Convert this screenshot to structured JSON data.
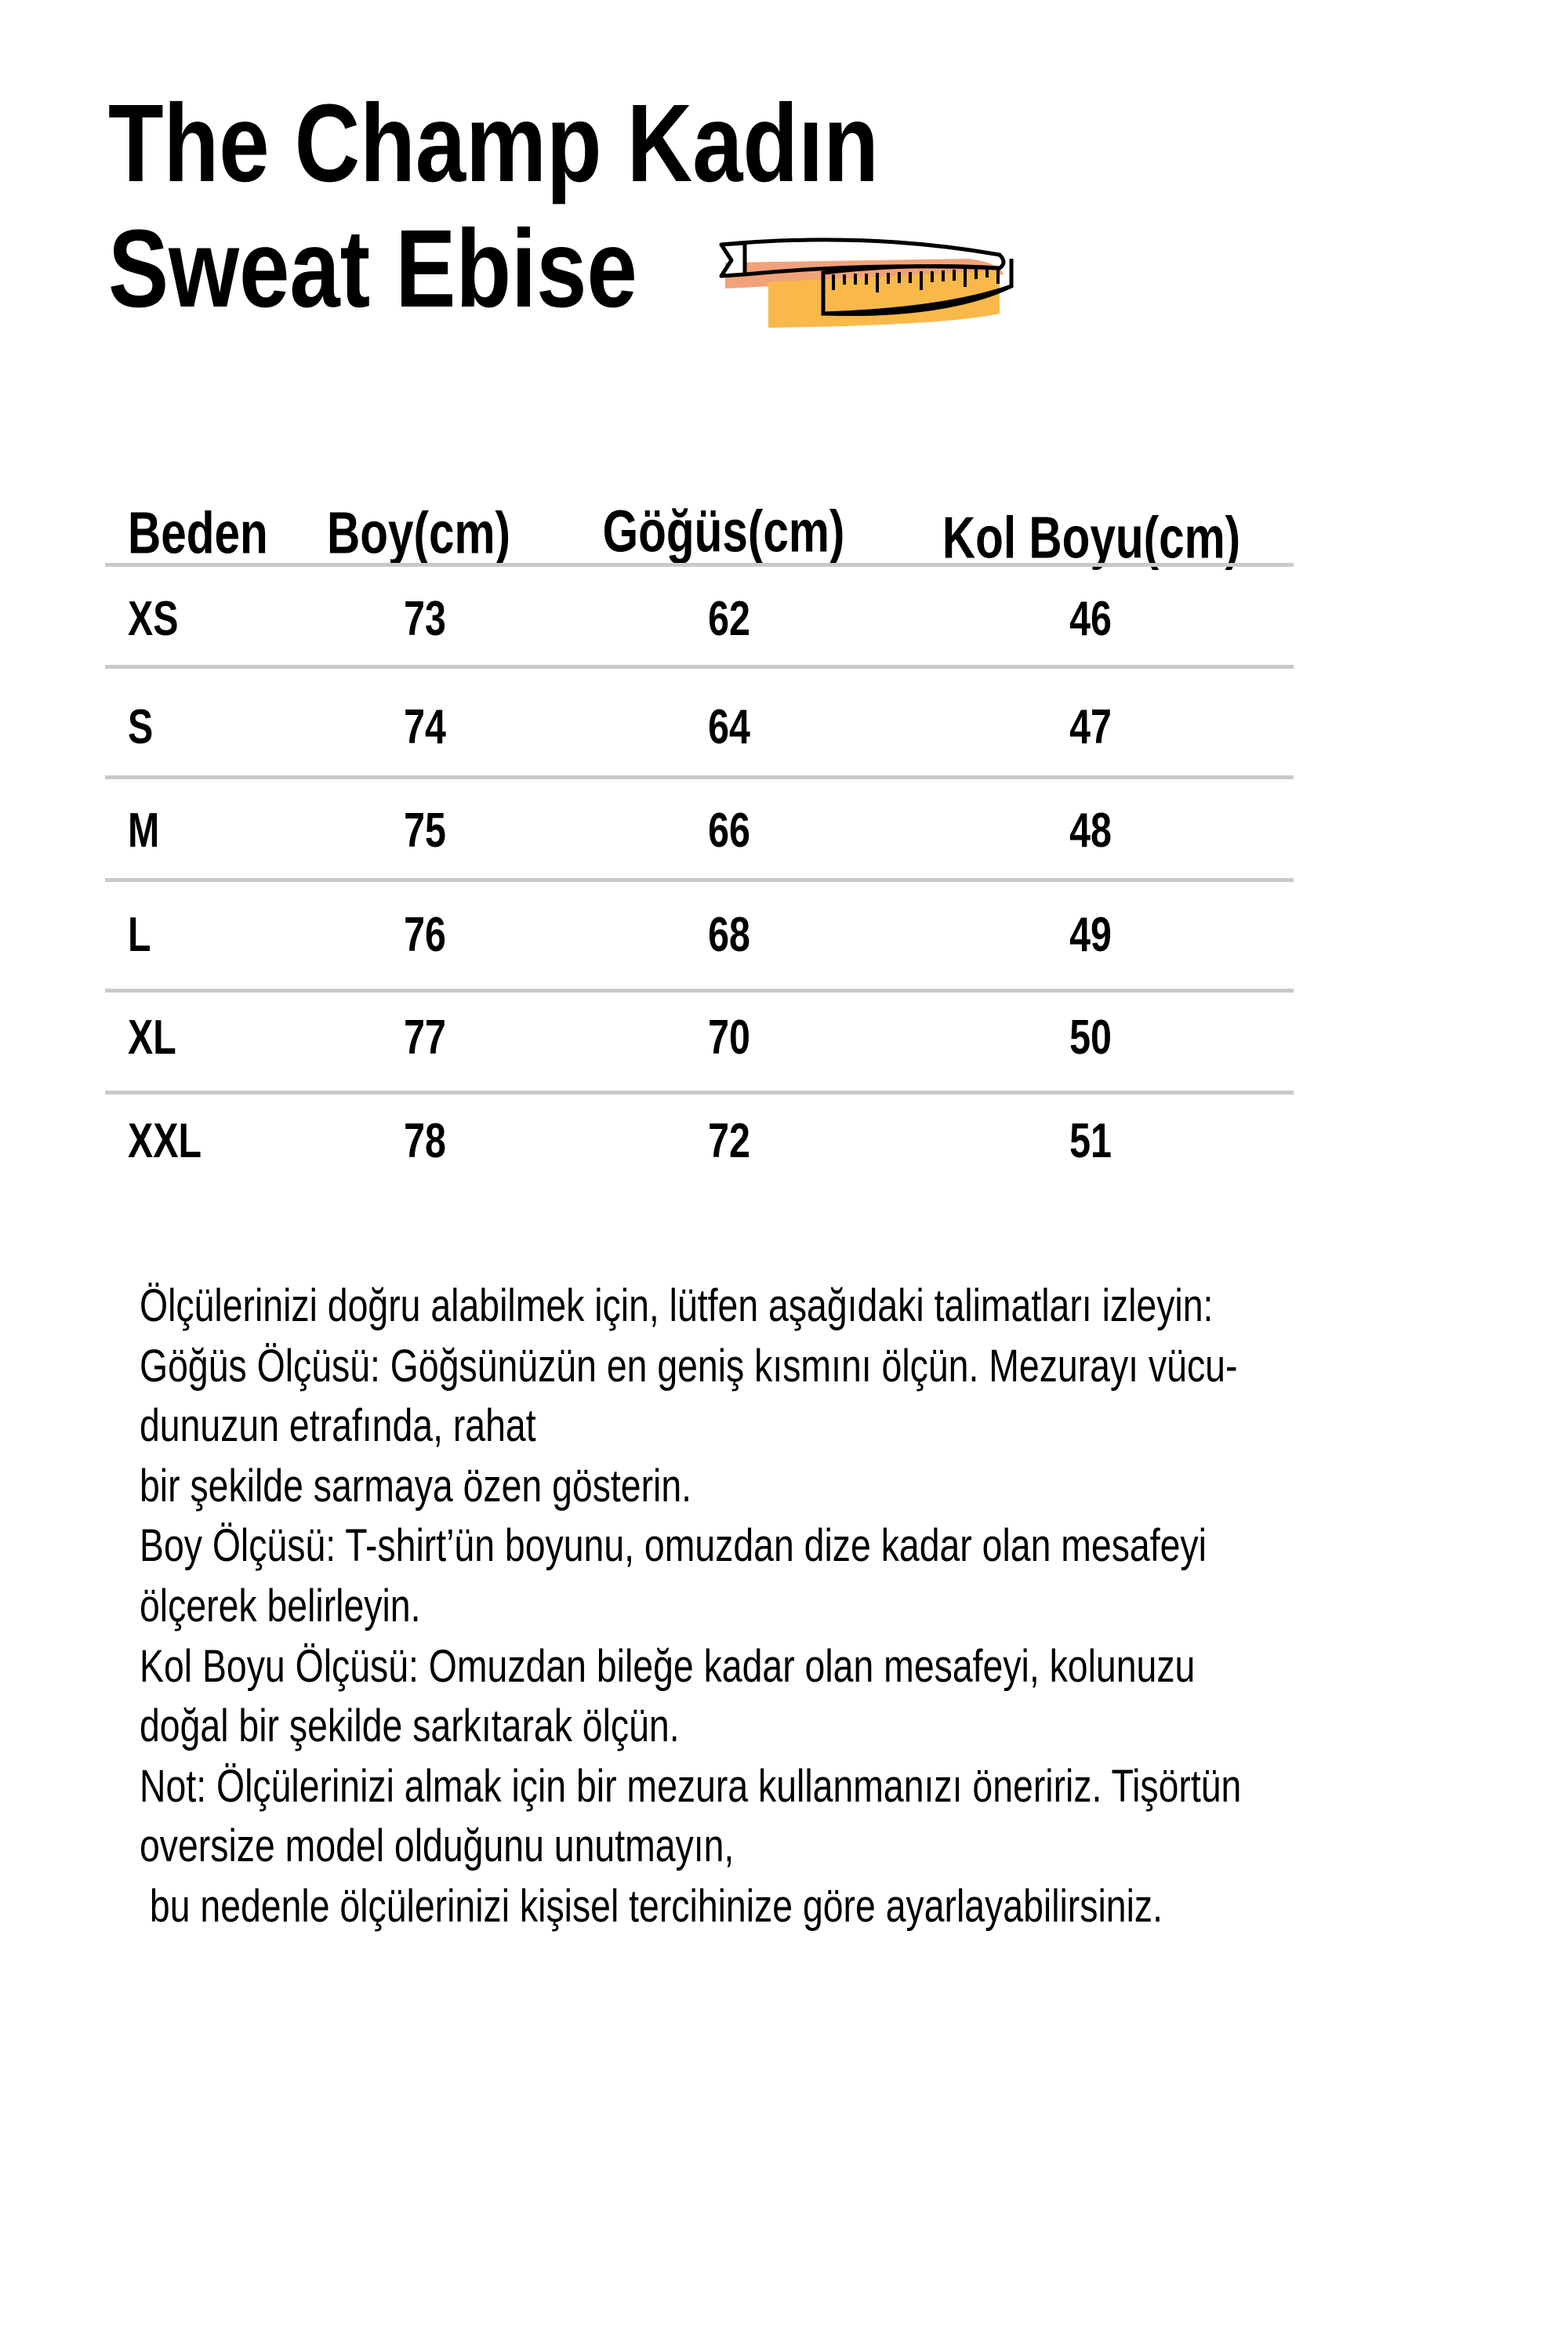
{
  "title": {
    "line1": "The Champ Kadın",
    "line2": "Sweat Ebise"
  },
  "icon": "measuring-tape-icon",
  "colors": {
    "tape_orange": "#f2a27a",
    "tape_yellow": "#f9b94a",
    "rule": "#c9c9c9"
  },
  "table": {
    "headers": [
      "Beden",
      "Boy(cm)",
      "Göğüs(cm)",
      "Kol Boyu(cm)"
    ],
    "rows": [
      [
        "XS",
        "73",
        "62",
        "46"
      ],
      [
        "S",
        "74",
        "64",
        "47"
      ],
      [
        "M",
        "75",
        "66",
        "48"
      ],
      [
        "L",
        "76",
        "68",
        "49"
      ],
      [
        "XL",
        "77",
        "70",
        "50"
      ],
      [
        "XXL",
        "78",
        "72",
        "51"
      ]
    ]
  },
  "notes": [
    "Ölçülerinizi doğru alabilmek için, lütfen aşağıdaki talimatları izleyin:",
    "Göğüs Ölçüsü: Göğsünüzün en geniş kısmını ölçün. Mezurayı vücu-",
    "dunuzun etrafında, rahat",
    "bir şekilde sarmaya özen gösterin.",
    "Boy Ölçüsü: T-shirt’ün boyunu, omuzdan dize kadar olan mesafeyi",
    "ölçerek belirleyin.",
    "Kol Boyu Ölçüsü: Omuzdan bileğe kadar olan mesafeyi, kolunuzu",
    "doğal bir şekilde sarkıtarak ölçün.",
    "Not: Ölçülerinizi almak için bir mezura kullanmanızı öneririz. Tişörtün",
    "oversize model olduğunu unutmayın,",
    " bu nedenle ölçülerinizi kişisel tercihinize göre ayarlayabilirsiniz."
  ]
}
